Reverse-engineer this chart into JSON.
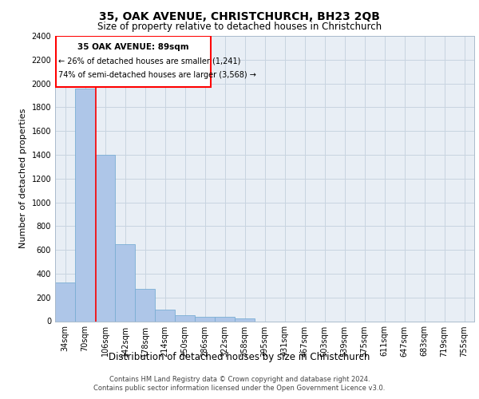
{
  "title1": "35, OAK AVENUE, CHRISTCHURCH, BH23 2QB",
  "title2": "Size of property relative to detached houses in Christchurch",
  "xlabel": "Distribution of detached houses by size in Christchurch",
  "ylabel": "Number of detached properties",
  "bar_labels": [
    "34sqm",
    "70sqm",
    "106sqm",
    "142sqm",
    "178sqm",
    "214sqm",
    "250sqm",
    "286sqm",
    "322sqm",
    "358sqm",
    "395sqm",
    "431sqm",
    "467sqm",
    "503sqm",
    "539sqm",
    "575sqm",
    "611sqm",
    "647sqm",
    "683sqm",
    "719sqm",
    "755sqm"
  ],
  "bar_values": [
    325,
    1960,
    1400,
    645,
    270,
    100,
    47,
    38,
    38,
    25,
    0,
    0,
    0,
    0,
    0,
    0,
    0,
    0,
    0,
    0,
    0
  ],
  "bar_color": "#aec6e8",
  "bar_edgecolor": "#7aaed4",
  "ylim": [
    0,
    2400
  ],
  "yticks": [
    0,
    200,
    400,
    600,
    800,
    1000,
    1200,
    1400,
    1600,
    1800,
    2000,
    2200,
    2400
  ],
  "property_label": "35 OAK AVENUE: 89sqm",
  "annotation_line1": "← 26% of detached houses are smaller (1,241)",
  "annotation_line2": "74% of semi-detached houses are larger (3,568) →",
  "grid_color": "#c8d4e0",
  "plot_background": "#e8eef5",
  "footer1": "Contains HM Land Registry data © Crown copyright and database right 2024.",
  "footer2": "Contains public sector information licensed under the Open Government Licence v3.0.",
  "title1_fontsize": 10,
  "title2_fontsize": 8.5,
  "ylabel_fontsize": 8,
  "xlabel_fontsize": 8.5,
  "tick_fontsize": 7,
  "footer_fontsize": 6,
  "ann_label_fontsize": 7.5,
  "ann_text_fontsize": 7
}
